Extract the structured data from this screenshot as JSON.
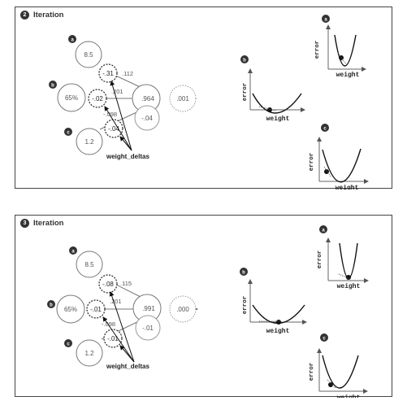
{
  "panels": [
    {
      "step": "2",
      "title": "Iteration",
      "inputs": {
        "a": "8.5",
        "b": "65%",
        "c": "1.2"
      },
      "weight_deltas": {
        "a": "-.31",
        "b": "-.02",
        "c": "-.04"
      },
      "weights": {
        "a": ".112",
        "b": ".201",
        "c": "-.098"
      },
      "prediction": ".964",
      "delta": "-.04",
      "error": ".001",
      "annotation": "weight_deltas",
      "graph_labels": {
        "a": "a",
        "b": "b",
        "c": "c"
      },
      "axis_x": "weight",
      "axis_y": "error"
    },
    {
      "step": "3",
      "title": "Iteration",
      "inputs": {
        "a": "8.5",
        "b": "65%",
        "c": "1.2"
      },
      "weight_deltas": {
        "a": "-.08",
        "b": "-.01",
        "c": "-.01"
      },
      "weights": {
        "a": ".115",
        "b": ".201",
        "c": "-.098"
      },
      "prediction": ".991",
      "delta": "-.01",
      "error": ".000",
      "annotation": "weight_deltas",
      "graph_labels": {
        "a": "a",
        "b": "b",
        "c": "c"
      },
      "axis_x": "weight",
      "axis_y": "error"
    }
  ]
}
